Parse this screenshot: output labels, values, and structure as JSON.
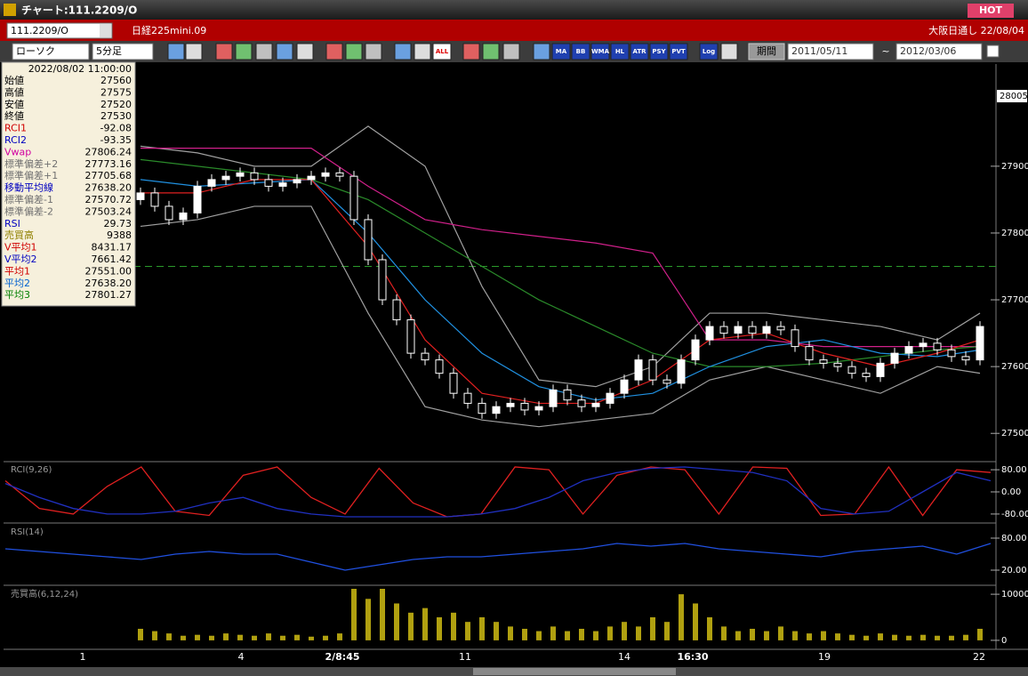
{
  "window": {
    "title": "チャート:111.2209/O",
    "hot": "HOT"
  },
  "header": {
    "symbol": "111.2209/O",
    "name": "日経225mini.09",
    "market": "大阪日通し 22/08/04"
  },
  "toolbar": {
    "chart_type": "ローソク",
    "interval": "5分足",
    "buttons": [
      "ALL",
      "MA",
      "BB",
      "WMA",
      "HL",
      "ATR",
      "PSY",
      "PVT",
      "Log"
    ],
    "period": "期間",
    "from": "2011/05/11",
    "separator": "~",
    "to": "2012/03/06"
  },
  "info": {
    "time": "2022/08/02 11:00:00",
    "rows": [
      {
        "label": "始値",
        "value": "27560",
        "color": "#000000"
      },
      {
        "label": "高値",
        "value": "27575",
        "color": "#000000"
      },
      {
        "label": "安値",
        "value": "27520",
        "color": "#000000"
      },
      {
        "label": "終値",
        "value": "27530",
        "color": "#000000"
      },
      {
        "label": "RCI1",
        "value": "-92.08",
        "color": "#d00000"
      },
      {
        "label": "RCI2",
        "value": "-93.35",
        "color": "#0000c0"
      },
      {
        "label": "Vwap",
        "value": "27806.24",
        "color": "#d000a0"
      },
      {
        "label": "標準偏差+2",
        "value": "27773.16",
        "color": "#707070"
      },
      {
        "label": "標準偏差+1",
        "value": "27705.68",
        "color": "#707070"
      },
      {
        "label": "移動平均線",
        "value": "27638.20",
        "color": "#0000c0"
      },
      {
        "label": "標準偏差-1",
        "value": "27570.72",
        "color": "#707070"
      },
      {
        "label": "標準偏差-2",
        "value": "27503.24",
        "color": "#707070"
      },
      {
        "label": "RSI",
        "value": "29.73",
        "color": "#0000c0"
      },
      {
        "label": "売買高",
        "value": "9388",
        "color": "#908000"
      },
      {
        "label": "V平均1",
        "value": "8431.17",
        "color": "#d00000"
      },
      {
        "label": "V平均2",
        "value": "7661.42",
        "color": "#0000c0"
      },
      {
        "label": "平均1",
        "value": "27551.00",
        "color": "#d00000"
      },
      {
        "label": "平均2",
        "value": "27638.20",
        "color": "#0060d0"
      },
      {
        "label": "平均3",
        "value": "27801.27",
        "color": "#008000"
      }
    ]
  },
  "main": {
    "ylim": [
      27459,
      28053
    ],
    "yticks": [
      27900,
      27800,
      27700,
      27600,
      27500
    ],
    "current": 28005,
    "level": 27750,
    "level_color": "#2a9a2a",
    "up_color": "#ffffff",
    "down_color": "#000000",
    "candles": [
      [
        27850,
        27868,
        27842,
        27860
      ],
      [
        27860,
        27868,
        27832,
        27840
      ],
      [
        27840,
        27848,
        27812,
        27820
      ],
      [
        27820,
        27838,
        27812,
        27830
      ],
      [
        27830,
        27878,
        27822,
        27870
      ],
      [
        27870,
        27888,
        27862,
        27880
      ],
      [
        27880,
        27893,
        27872,
        27885
      ],
      [
        27885,
        27898,
        27877,
        27890
      ],
      [
        27890,
        27898,
        27872,
        27880
      ],
      [
        27880,
        27888,
        27862,
        27870
      ],
      [
        27870,
        27883,
        27862,
        27875
      ],
      [
        27875,
        27888,
        27867,
        27880
      ],
      [
        27880,
        27893,
        27872,
        27885
      ],
      [
        27885,
        27898,
        27877,
        27890
      ],
      [
        27890,
        27898,
        27877,
        27885
      ],
      [
        27885,
        27893,
        27812,
        27820
      ],
      [
        27820,
        27828,
        27752,
        27760
      ],
      [
        27760,
        27768,
        27692,
        27700
      ],
      [
        27700,
        27708,
        27662,
        27670
      ],
      [
        27670,
        27678,
        27612,
        27620
      ],
      [
        27620,
        27628,
        27602,
        27610
      ],
      [
        27610,
        27618,
        27582,
        27590
      ],
      [
        27590,
        27598,
        27552,
        27560
      ],
      [
        27560,
        27568,
        27537,
        27545
      ],
      [
        27545,
        27553,
        27522,
        27530
      ],
      [
        27530,
        27548,
        27522,
        27540
      ],
      [
        27540,
        27553,
        27532,
        27545
      ],
      [
        27545,
        27553,
        27527,
        27535
      ],
      [
        27535,
        27548,
        27527,
        27540
      ],
      [
        27540,
        27573,
        27532,
        27565
      ],
      [
        27565,
        27573,
        27542,
        27550
      ],
      [
        27550,
        27558,
        27532,
        27540
      ],
      [
        27540,
        27553,
        27532,
        27545
      ],
      [
        27545,
        27568,
        27537,
        27560
      ],
      [
        27560,
        27588,
        27552,
        27580
      ],
      [
        27580,
        27618,
        27572,
        27610
      ],
      [
        27610,
        27618,
        27572,
        27580
      ],
      [
        27580,
        27588,
        27567,
        27575
      ],
      [
        27575,
        27618,
        27567,
        27610
      ],
      [
        27610,
        27648,
        27602,
        27640
      ],
      [
        27640,
        27668,
        27632,
        27660
      ],
      [
        27660,
        27668,
        27642,
        27650
      ],
      [
        27650,
        27668,
        27642,
        27660
      ],
      [
        27660,
        27668,
        27642,
        27650
      ],
      [
        27650,
        27668,
        27642,
        27660
      ],
      [
        27660,
        27668,
        27647,
        27655
      ],
      [
        27655,
        27663,
        27622,
        27630
      ],
      [
        27630,
        27638,
        27602,
        27610
      ],
      [
        27610,
        27618,
        27597,
        27605
      ],
      [
        27605,
        27613,
        27592,
        27600
      ],
      [
        27600,
        27608,
        27582,
        27590
      ],
      [
        27590,
        27598,
        27577,
        27585
      ],
      [
        27585,
        27613,
        27577,
        27605
      ],
      [
        27605,
        27628,
        27597,
        27620
      ],
      [
        27620,
        27638,
        27612,
        27630
      ],
      [
        27630,
        27643,
        27622,
        27635
      ],
      [
        27635,
        27643,
        27617,
        27625
      ],
      [
        27625,
        27633,
        27607,
        27615
      ],
      [
        27615,
        27623,
        27602,
        27610
      ],
      [
        27610,
        27668,
        27602,
        27660
      ]
    ],
    "line_index": [
      0,
      4,
      8,
      12,
      16,
      20,
      24,
      28,
      32,
      36,
      40,
      44,
      48,
      52,
      56,
      59
    ],
    "lines": [
      {
        "color": "#a0a0a0",
        "values": [
          27930,
          27920,
          27900,
          27900,
          27960,
          27900,
          27720,
          27580,
          27570,
          27600,
          27680,
          27680,
          27670,
          27660,
          27640,
          27680
        ]
      },
      {
        "color": "#a0a0a0",
        "values": [
          27810,
          27820,
          27840,
          27840,
          27680,
          27540,
          27520,
          27510,
          27520,
          27530,
          27580,
          27600,
          27580,
          27560,
          27600,
          27590
        ]
      },
      {
        "color": "#d0208a",
        "values": [
          27927,
          27927,
          27927,
          27927,
          27870,
          27820,
          27805,
          27795,
          27785,
          27770,
          27640,
          27640,
          27630,
          27630,
          27630,
          27630
        ]
      },
      {
        "color": "#2a8a2a",
        "values": [
          27910,
          27900,
          27890,
          27880,
          27850,
          27800,
          27750,
          27700,
          27660,
          27620,
          27600,
          27600,
          27605,
          27615,
          27625,
          27630
        ]
      },
      {
        "color": "#2090e0",
        "values": [
          27880,
          27870,
          27875,
          27880,
          27800,
          27700,
          27620,
          27570,
          27550,
          27560,
          27600,
          27630,
          27640,
          27620,
          27615,
          27625
        ]
      },
      {
        "color": "#e02020",
        "values": [
          27860,
          27860,
          27880,
          27880,
          27780,
          27640,
          27560,
          27545,
          27545,
          27580,
          27640,
          27650,
          27620,
          27600,
          27620,
          27640
        ]
      }
    ]
  },
  "panels": [
    {
      "label": "RCI(9,26)",
      "ylim": [
        -106,
        106
      ],
      "yticks": [
        {
          "value": 80,
          "label": "80.00"
        },
        {
          "value": 0,
          "label": "0.00"
        },
        {
          "value": -80,
          "label": "-80.00"
        }
      ],
      "series": [
        {
          "color": "#e02020",
          "values": [
            40,
            -60,
            -80,
            20,
            90,
            -70,
            -85,
            60,
            90,
            -20,
            -80,
            85,
            -40,
            -90,
            -80,
            90,
            80,
            -80,
            60,
            90,
            80,
            -80,
            90,
            85,
            -85,
            -80,
            90,
            -85,
            80,
            70
          ]
        },
        {
          "color": "#2030c0",
          "values": [
            30,
            -20,
            -60,
            -80,
            -80,
            -70,
            -40,
            -20,
            -60,
            -80,
            -90,
            -90,
            -90,
            -90,
            -80,
            -60,
            -20,
            40,
            70,
            85,
            90,
            80,
            70,
            40,
            -60,
            -80,
            -70,
            0,
            70,
            40
          ]
        }
      ]
    },
    {
      "label": "RSI(14)",
      "ylim": [
        -5,
        105
      ],
      "yticks": [
        {
          "value": 80,
          "label": "80.00"
        },
        {
          "value": 20,
          "label": "20.00"
        }
      ],
      "series": [
        {
          "color": "#2050e0",
          "values": [
            60,
            55,
            50,
            45,
            40,
            50,
            55,
            50,
            50,
            35,
            20,
            30,
            40,
            45,
            45,
            50,
            55,
            60,
            70,
            65,
            70,
            60,
            55,
            50,
            45,
            55,
            60,
            65,
            50,
            70
          ]
        }
      ]
    }
  ],
  "volume": {
    "label": "売買高(6,12,24)",
    "ylim": [
      -1562,
      11562
    ],
    "yticks": [
      10000,
      0
    ],
    "color": "#b0a010",
    "values": [
      2500,
      2000,
      1500,
      1000,
      1200,
      1000,
      1500,
      1200,
      1000,
      1500,
      1000,
      1200,
      800,
      1000,
      1500,
      14000,
      9000,
      12000,
      8000,
      6000,
      7000,
      5000,
      6000,
      4000,
      5000,
      4000,
      3000,
      2500,
      2000,
      3000,
      2000,
      2500,
      2000,
      3000,
      4000,
      3000,
      5000,
      4000,
      10000,
      8000,
      5000,
      3000,
      2000,
      2500,
      2000,
      3000,
      2000,
      1500,
      2000,
      1500,
      1200,
      1000,
      1500,
      1200,
      1000,
      1200,
      1000,
      1000,
      1200,
      2500
    ]
  },
  "xaxis": {
    "labels": [
      "1",
      "4",
      "2/8:45",
      "11",
      "14",
      "16:30",
      "19",
      "22"
    ]
  }
}
